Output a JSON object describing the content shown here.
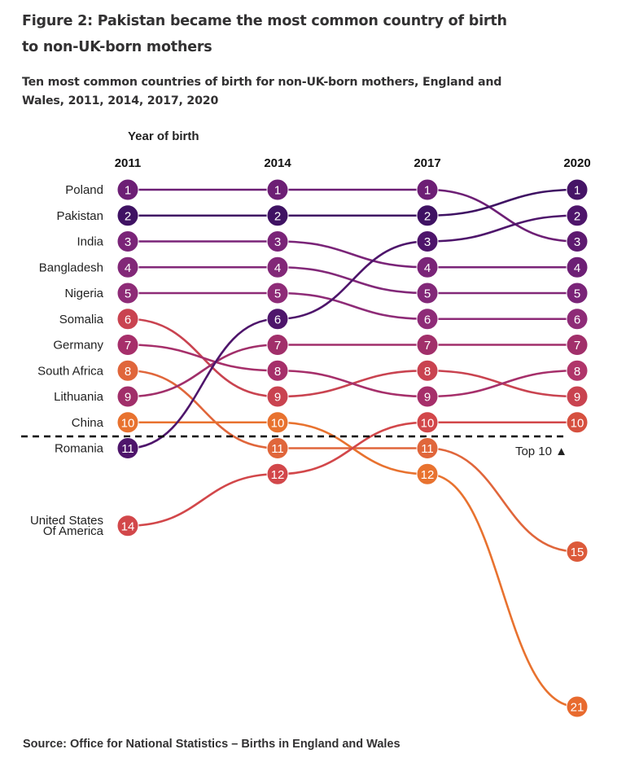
{
  "header": {
    "title": "Figure 2: Pakistan became the most common country of birth to non-UK-born mothers",
    "subtitle": "Ten most common countries of birth for non-UK-born mothers, England and Wales, 2011, 2014, 2017, 2020"
  },
  "footer": {
    "source": "Source: Office for National Statistics – Births in England and Wales"
  },
  "chart_data": {
    "type": "bump",
    "title": "Ten most common countries of birth for non-UK-born mothers, England and Wales, 2011, 2014, 2017, 2020",
    "axis_title": "Year of birth",
    "years": [
      "2011",
      "2014",
      "2017",
      "2020"
    ],
    "cutoff_rank": 10,
    "cutoff_label": "Top 10 ▲",
    "rank_colors": {
      "1": "#6d1f75",
      "2": "#451466",
      "3": "#7a2478",
      "4": "#822878",
      "5": "#8e2b77",
      "6": "#c0404f",
      "7": "#a62f6a",
      "8": "#e0663b",
      "9": "#a12f6a",
      "10": "#e8722f",
      "11": "#4e156b",
      "12": "#d25043",
      "14": "#d2474a",
      "15": "#dc5a3a",
      "21": "#e86a2e"
    },
    "column_rank_colors": {
      "2011": {
        "1": "#6d1f75",
        "2": "#3f1263",
        "3": "#7a2478",
        "4": "#822878",
        "5": "#8e2b77",
        "6": "#c94350",
        "7": "#a62f6a",
        "8": "#e0663b",
        "9": "#a12f6a",
        "10": "#e8722f",
        "11": "#4e156b",
        "14": "#d2474a"
      },
      "2014": {
        "1": "#6d1f75",
        "2": "#3f1263",
        "3": "#7a2478",
        "4": "#822878",
        "5": "#8e2b77",
        "6": "#4e156b",
        "7": "#a12f6a",
        "8": "#a62f6a",
        "9": "#c94350",
        "10": "#e8722f",
        "11": "#e0663b",
        "12": "#d2474a"
      },
      "2017": {
        "1": "#6d1f75",
        "2": "#3f1263",
        "3": "#4e156b",
        "4": "#7a2478",
        "5": "#822878",
        "6": "#8e2b77",
        "7": "#a12f6a",
        "8": "#c94350",
        "9": "#a62f6a",
        "10": "#d2474a",
        "11": "#e0663b",
        "12": "#e8722f"
      },
      "2020": {
        "1": "#451466",
        "2": "#4e156b",
        "3": "#5e1a70",
        "4": "#6d1f75",
        "5": "#7a2478",
        "6": "#8e2b77",
        "7": "#a12f6a",
        "8": "#b0356a",
        "9": "#c94350",
        "10": "#d6503f",
        "15": "#dc5a3a",
        "21": "#e86a2e"
      }
    },
    "series": [
      {
        "name": "Poland",
        "ranks": [
          1,
          1,
          1,
          3
        ],
        "color": "#6d1f75"
      },
      {
        "name": "Pakistan",
        "ranks": [
          2,
          2,
          2,
          1
        ],
        "color": "#3f1263"
      },
      {
        "name": "India",
        "ranks": [
          3,
          3,
          4,
          4
        ],
        "color": "#7a2478"
      },
      {
        "name": "Bangladesh",
        "ranks": [
          4,
          4,
          5,
          5
        ],
        "color": "#822878"
      },
      {
        "name": "Nigeria",
        "ranks": [
          5,
          5,
          6,
          6
        ],
        "color": "#8e2b77"
      },
      {
        "name": "Somalia",
        "ranks": [
          6,
          9,
          8,
          9
        ],
        "color": "#c94350"
      },
      {
        "name": "Germany",
        "ranks": [
          7,
          8,
          9,
          8
        ],
        "color": "#a62f6a"
      },
      {
        "name": "South Africa",
        "ranks": [
          8,
          11,
          11,
          15
        ],
        "color": "#e0663b"
      },
      {
        "name": "Lithuania",
        "ranks": [
          9,
          7,
          7,
          7
        ],
        "color": "#a12f6a"
      },
      {
        "name": "China",
        "ranks": [
          10,
          10,
          12,
          21
        ],
        "color": "#e8722f"
      },
      {
        "name": "Romania",
        "ranks": [
          11,
          6,
          3,
          2
        ],
        "color": "#4e156b"
      },
      {
        "name": "United States Of America",
        "label_lines": [
          "United States",
          "Of America"
        ],
        "ranks": [
          14,
          12,
          10,
          10
        ],
        "color": "#d2474a"
      }
    ],
    "legend": "none"
  }
}
